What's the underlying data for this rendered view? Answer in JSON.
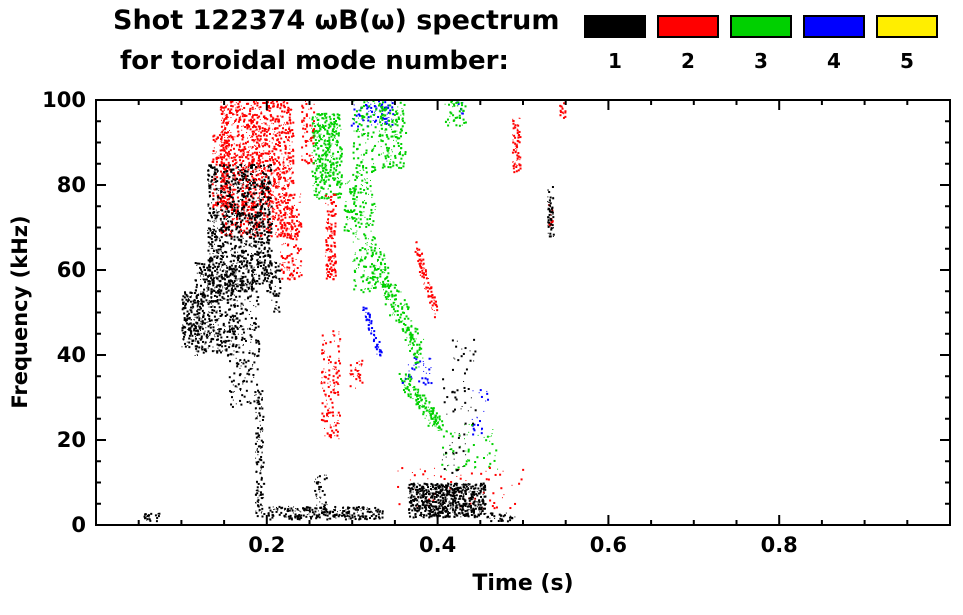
{
  "chart_data": {
    "type": "scatter",
    "title": "Shot 122374 ωB(ω) spectrum",
    "subtitle": "for toroidal mode number:",
    "xlabel": "Time (s)",
    "ylabel": "Frequency (kHz)",
    "xlim": [
      0.0,
      1.0
    ],
    "ylim": [
      0,
      100
    ],
    "xticks": [
      0.2,
      0.4,
      0.6,
      0.8
    ],
    "xtick_labels": [
      "0.2",
      "0.4",
      "0.6",
      "0.8"
    ],
    "yticks": [
      0,
      20,
      40,
      60,
      80,
      100
    ],
    "x_minor_step": 0.05,
    "y_minor_step": 5,
    "grid": false,
    "legend_position": "top-right",
    "legend": [
      {
        "label": "1",
        "color": "#000000"
      },
      {
        "label": "2",
        "color": "#ff0000"
      },
      {
        "label": "3",
        "color": "#00d000"
      },
      {
        "label": "4",
        "color": "#0000ff"
      },
      {
        "label": "5",
        "color": "#ffee00"
      }
    ],
    "series": [
      {
        "name": "n=1",
        "color": "#000000",
        "clusters": [
          {
            "t": [
              0.055,
              0.075
            ],
            "f": [
              1,
              3
            ],
            "pts": 25
          },
          {
            "t": [
              0.1,
              0.125
            ],
            "f": [
              42,
              55
            ],
            "pts": 180
          },
          {
            "t": [
              0.115,
              0.165
            ],
            "f": [
              40,
              62
            ],
            "pts": 450
          },
          {
            "t": [
              0.13,
              0.205
            ],
            "f": [
              55,
              85
            ],
            "pts": 1100
          },
          {
            "t": [
              0.155,
              0.19
            ],
            "f": [
              28,
              58
            ],
            "pts": 220
          },
          {
            "t": [
              0.186,
              0.196
            ],
            "f": [
              2,
              32
            ],
            "pts": 130
          },
          {
            "t": [
              0.205,
              0.215
            ],
            "f": [
              50,
              62
            ],
            "pts": 40
          },
          {
            "t": [
              0.2,
              0.335
            ],
            "f": [
              1.5,
              4.5
            ],
            "pts": 260
          },
          {
            "t": [
              0.255,
              0.27
            ],
            "f": [
              2,
              12
            ],
            "pts": 50
          },
          {
            "t": [
              0.365,
              0.455
            ],
            "f": [
              2,
              10
            ],
            "pts": 750
          },
          {
            "t": [
              0.405,
              0.445
            ],
            "f": [
              12,
              45
            ],
            "pts": 70
          },
          {
            "t": [
              0.455,
              0.49
            ],
            "f": [
              1,
              3
            ],
            "pts": 35
          },
          {
            "t": [
              0.528,
              0.535
            ],
            "f": [
              68,
              80
            ],
            "pts": 60
          }
        ]
      },
      {
        "name": "n=2",
        "color": "#ff0000",
        "clusters": [
          {
            "t": [
              0.145,
              0.23
            ],
            "f": [
              68,
              100
            ],
            "pts": 1300
          },
          {
            "t": [
              0.135,
              0.155
            ],
            "f": [
              75,
              92
            ],
            "pts": 120
          },
          {
            "t": [
              0.215,
              0.24
            ],
            "f": [
              58,
              78
            ],
            "pts": 160
          },
          {
            "t": [
              0.24,
              0.255
            ],
            "f": [
              85,
              100
            ],
            "pts": 60
          },
          {
            "t": [
              0.268,
              0.28
            ],
            "f": [
              58,
              78
            ],
            "pts": 130
          },
          {
            "t": [
              0.263,
              0.285
            ],
            "f": [
              20,
              46
            ],
            "pts": 140
          },
          {
            "t": [
              0.295,
              0.312
            ],
            "f": [
              32,
              39
            ],
            "pts": 30
          },
          {
            "t": [
              0.375,
              0.397
            ],
            "f": [
              50,
              65
            ],
            "pts": 90,
            "shape": "diag"
          },
          {
            "t": [
              0.35,
              0.5
            ],
            "f": [
              4,
              14
            ],
            "pts": 70
          },
          {
            "t": [
              0.487,
              0.496
            ],
            "f": [
              83,
              96
            ],
            "pts": 70
          },
          {
            "t": [
              0.542,
              0.549
            ],
            "f": [
              96,
              100
            ],
            "pts": 14
          },
          {
            "t": [
              0.529,
              0.534
            ],
            "f": [
              70,
              76
            ],
            "pts": 12
          }
        ]
      },
      {
        "name": "n=3",
        "color": "#00d000",
        "clusters": [
          {
            "t": [
              0.252,
              0.287
            ],
            "f": [
              77,
              97
            ],
            "pts": 380
          },
          {
            "t": [
              0.29,
              0.305
            ],
            "f": [
              68,
              82
            ],
            "pts": 60
          },
          {
            "t": [
              0.3,
              0.327
            ],
            "f": [
              55,
              100
            ],
            "pts": 260
          },
          {
            "t": [
              0.33,
              0.362
            ],
            "f": [
              84,
              100
            ],
            "pts": 170
          },
          {
            "t": [
              0.325,
              0.378
            ],
            "f": [
              40,
              63
            ],
            "pts": 230,
            "shape": "diag"
          },
          {
            "t": [
              0.358,
              0.402
            ],
            "f": [
              23,
              35
            ],
            "pts": 150,
            "shape": "diag"
          },
          {
            "t": [
              0.4,
              0.47
            ],
            "f": [
              13,
              24
            ],
            "pts": 60
          },
          {
            "t": [
              0.408,
              0.432
            ],
            "f": [
              94,
              100
            ],
            "pts": 40
          }
        ]
      },
      {
        "name": "n=4",
        "color": "#0000ff",
        "clusters": [
          {
            "t": [
              0.298,
              0.348
            ],
            "f": [
              94,
              100
            ],
            "pts": 90
          },
          {
            "t": [
              0.313,
              0.332
            ],
            "f": [
              41,
              51
            ],
            "pts": 60,
            "shape": "diag"
          },
          {
            "t": [
              0.358,
              0.392
            ],
            "f": [
              33,
              40
            ],
            "pts": 40
          },
          {
            "t": [
              0.422,
              0.43
            ],
            "f": [
              96,
              100
            ],
            "pts": 12
          },
          {
            "t": [
              0.44,
              0.458
            ],
            "f": [
              21,
              32
            ],
            "pts": 22
          }
        ]
      },
      {
        "name": "n=5",
        "color": "#ffee00",
        "clusters": []
      }
    ]
  }
}
